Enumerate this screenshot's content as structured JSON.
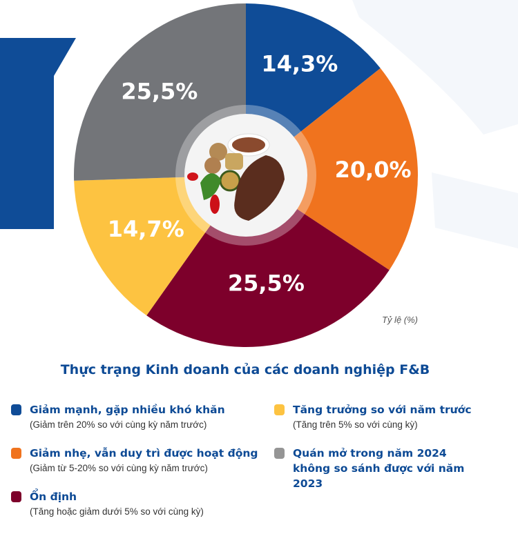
{
  "chart_data": {
    "type": "pie",
    "title": "Thực trạng Kinh doanh của các doanh nghiệp F&B",
    "unit_label": "Tỷ lệ (%)",
    "start": "12 o'clock, clockwise",
    "slices": [
      {
        "label": "Giảm mạnh, gặp nhiều khó khăn",
        "note": "(Giảm trên 20% so với cùng kỳ năm trước)",
        "value": 14.3,
        "display": "14,3%",
        "color": "#0f4c97"
      },
      {
        "label": "Giảm nhẹ, vẫn duy trì được hoạt động",
        "note": "(Giảm từ 5-20% so với cùng kỳ năm trước)",
        "value": 20.0,
        "display": "20,0%",
        "color": "#f0731e"
      },
      {
        "label": "Ổn định",
        "note": "(Tăng hoặc giảm dưới 5% so với cùng kỳ)",
        "value": 25.5,
        "display": "25,5%",
        "color": "#7d002b"
      },
      {
        "label": "Tăng trưởng so với năm trước",
        "note": "(Tăng trên 5% so với cùng kỳ)",
        "value": 14.7,
        "display": "14,7%",
        "color": "#fdc341"
      },
      {
        "label": "Quán mở trong năm 2024 không so sánh được với năm 2023",
        "note": "",
        "value": 25.5,
        "display": "25,5%",
        "color": "#737579"
      }
    ],
    "legend_placement": "bottom"
  }
}
